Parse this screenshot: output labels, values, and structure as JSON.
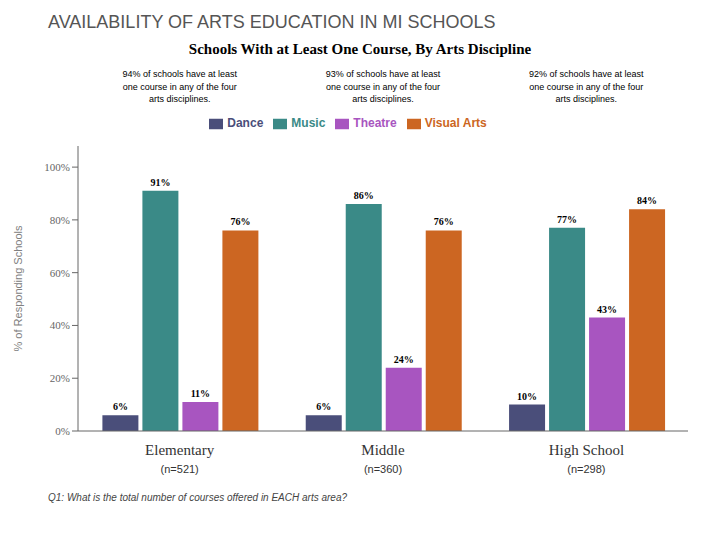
{
  "chart_data": {
    "type": "bar",
    "title": "AVAILABILITY OF ARTS EDUCATION IN MI SCHOOLS",
    "subtitle": "Schools With at Least One Course,  By Arts Discipline",
    "categories": [
      "Elementary",
      "Middle",
      "High School"
    ],
    "category_n": [
      "(n=521)",
      "(n=360)",
      "(n=298)"
    ],
    "category_notes": [
      "94% of schools have at least\none course in any of the four\narts disciplines.",
      "93% of schools have at least\none course in any of the four\narts disciplines.",
      "92% of schools have at least\none course in any of the four\narts disciplines."
    ],
    "series": [
      {
        "name": "Dance",
        "color": "#4a4e7a",
        "values": [
          6,
          6,
          10
        ],
        "value_labels": [
          "6%",
          "6%",
          "10%"
        ]
      },
      {
        "name": "Music",
        "color": "#3a8a87",
        "values": [
          91,
          86,
          77
        ],
        "value_labels": [
          "91%",
          "86%",
          "77%"
        ]
      },
      {
        "name": "Theatre",
        "color": "#a855c0",
        "values": [
          11,
          24,
          43
        ],
        "value_labels": [
          "11%",
          "24%",
          "43%"
        ]
      },
      {
        "name": "Visual Arts",
        "color": "#cc6622",
        "values": [
          76,
          76,
          84
        ],
        "value_labels": [
          "76%",
          "76%",
          "84%"
        ]
      }
    ],
    "ylabel": "% of Responding Schools",
    "ylim": [
      0,
      108
    ],
    "yticks": [
      {
        "value": 0,
        "label": "0%"
      },
      {
        "value": 20,
        "label": "20%"
      },
      {
        "value": 40,
        "label": "40%"
      },
      {
        "value": 60,
        "label": "60%"
      },
      {
        "value": 80,
        "label": "80%"
      },
      {
        "value": 100,
        "label": "100%"
      }
    ],
    "data_labels": true,
    "grid": false,
    "legend": "top",
    "footnote": "Q1: What is the total number of courses offered in EACH arts area?"
  }
}
